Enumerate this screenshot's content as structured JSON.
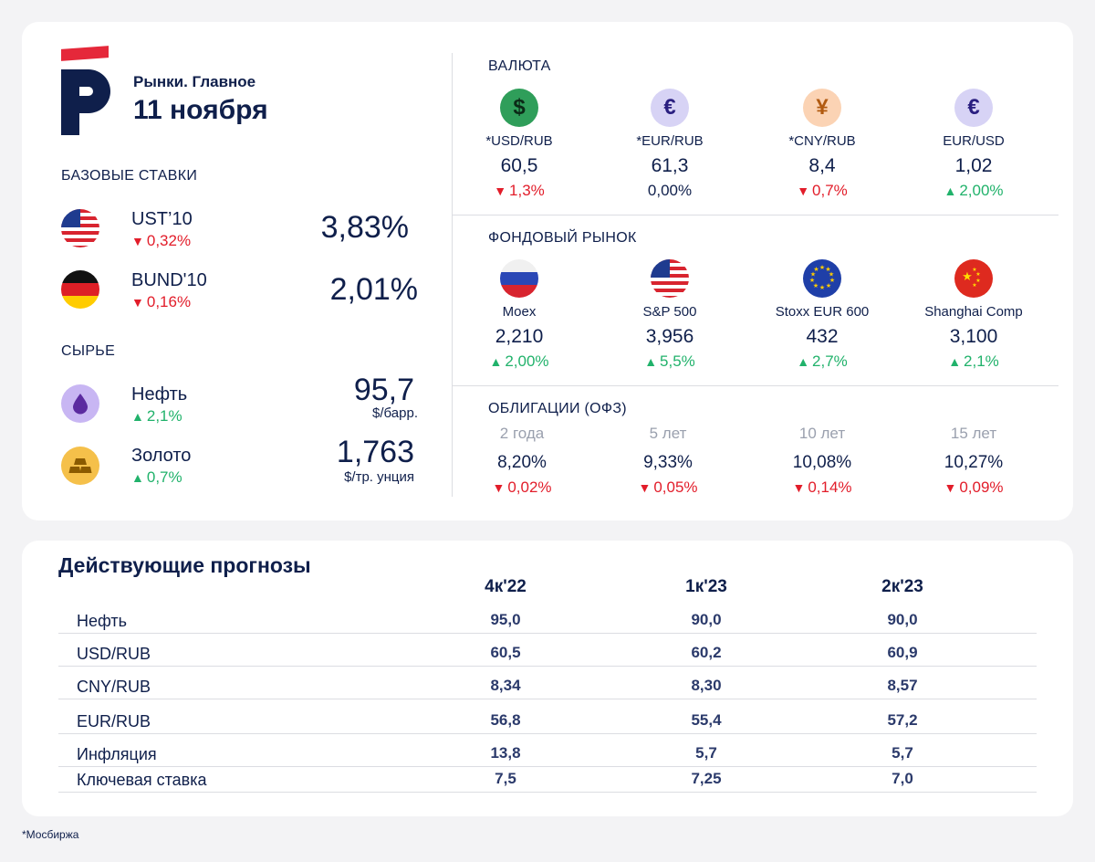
{
  "header": {
    "subtitle": "Рынки. Главное",
    "date": "11 ноября"
  },
  "base_rates": {
    "title": "БАЗОВЫЕ СТАВКИ",
    "items": [
      {
        "name": "UST’10",
        "change": "0,32%",
        "direction": "down",
        "value": "3,83%",
        "icon": "us-flag-icon"
      },
      {
        "name": "BUND'10",
        "change": "0,16%",
        "direction": "down",
        "value": "2,01%",
        "icon": "germany-flag-icon"
      }
    ]
  },
  "commodities": {
    "title": "СЫРЬЕ",
    "items": [
      {
        "name": "Нефть",
        "change": "2,1%",
        "direction": "up",
        "value": "95,7",
        "unit": "$/барр.",
        "icon": "oil-drop-icon"
      },
      {
        "name": "Золото",
        "change": "0,7%",
        "direction": "up",
        "value": "1,763",
        "unit": "$/тр. унция",
        "icon": "gold-bars-icon"
      }
    ]
  },
  "currency": {
    "title": "ВАЛЮТА",
    "items": [
      {
        "label": "*USD/RUB",
        "value": "60,5",
        "change": "1,3%",
        "direction": "down",
        "glyph": "$",
        "icon": "dollar-icon"
      },
      {
        "label": "*EUR/RUB",
        "value": "61,3",
        "change": "0,00%",
        "direction": "none",
        "glyph": "€",
        "icon": "euro-icon"
      },
      {
        "label": "*CNY/RUB",
        "value": "8,4",
        "change": "0,7%",
        "direction": "down",
        "glyph": "¥",
        "icon": "yuan-icon"
      },
      {
        "label": "EUR/USD",
        "value": "1,02",
        "change": "2,00%",
        "direction": "up",
        "glyph": "€",
        "icon": "euro-icon"
      }
    ]
  },
  "stock_market": {
    "title": "ФОНДОВЫЙ РЫНОК",
    "items": [
      {
        "label": "Moex",
        "value": "2,210",
        "change": "2,00%",
        "direction": "up",
        "icon": "russia-flag-icon"
      },
      {
        "label": "S&P 500",
        "value": "3,956",
        "change": "5,5%",
        "direction": "up",
        "icon": "us-flag-icon"
      },
      {
        "label": "Stoxx EUR 600",
        "value": "432",
        "change": "2,7%",
        "direction": "up",
        "icon": "eu-flag-icon"
      },
      {
        "label": "Shanghai Comp",
        "value": "3,100",
        "change": "2,1%",
        "direction": "up",
        "icon": "china-flag-icon"
      }
    ]
  },
  "bonds": {
    "title": "ОБЛИГАЦИИ (ОФЗ)",
    "items": [
      {
        "term": "2 года",
        "value": "8,20%",
        "change": "0,02%",
        "direction": "down"
      },
      {
        "term": "5 лет",
        "value": "9,33%",
        "change": "0,05%",
        "direction": "down"
      },
      {
        "term": "10 лет",
        "value": "10,08%",
        "change": "0,14%",
        "direction": "down"
      },
      {
        "term": "15 лет",
        "value": "10,27%",
        "change": "0,09%",
        "direction": "down"
      }
    ]
  },
  "forecasts": {
    "title": "Действующие прогнозы",
    "columns": [
      "4к'22",
      "1к'23",
      "2к'23"
    ],
    "rows": [
      {
        "name": "Нефть",
        "values": [
          "95,0",
          "90,0",
          "90,0"
        ]
      },
      {
        "name": "USD/RUB",
        "values": [
          "60,5",
          "60,2",
          "60,9"
        ]
      },
      {
        "name": "CNY/RUB",
        "values": [
          "8,34",
          "8,30",
          "8,57"
        ]
      },
      {
        "name": "EUR/RUB",
        "values": [
          "56,8",
          "55,4",
          "57,2"
        ]
      },
      {
        "name": "Инфляция",
        "values": [
          "13,8",
          "5,7",
          "5,7"
        ]
      },
      {
        "name": "Ключевая ставка",
        "values": [
          "7,5",
          "7,25",
          "7,0"
        ]
      }
    ]
  },
  "footnote": "*Мосбиржа",
  "colors": {
    "navy": "#0f1f4b",
    "brand_red": "#e5283a",
    "up": "#21b26b",
    "down": "#e21d2a"
  }
}
